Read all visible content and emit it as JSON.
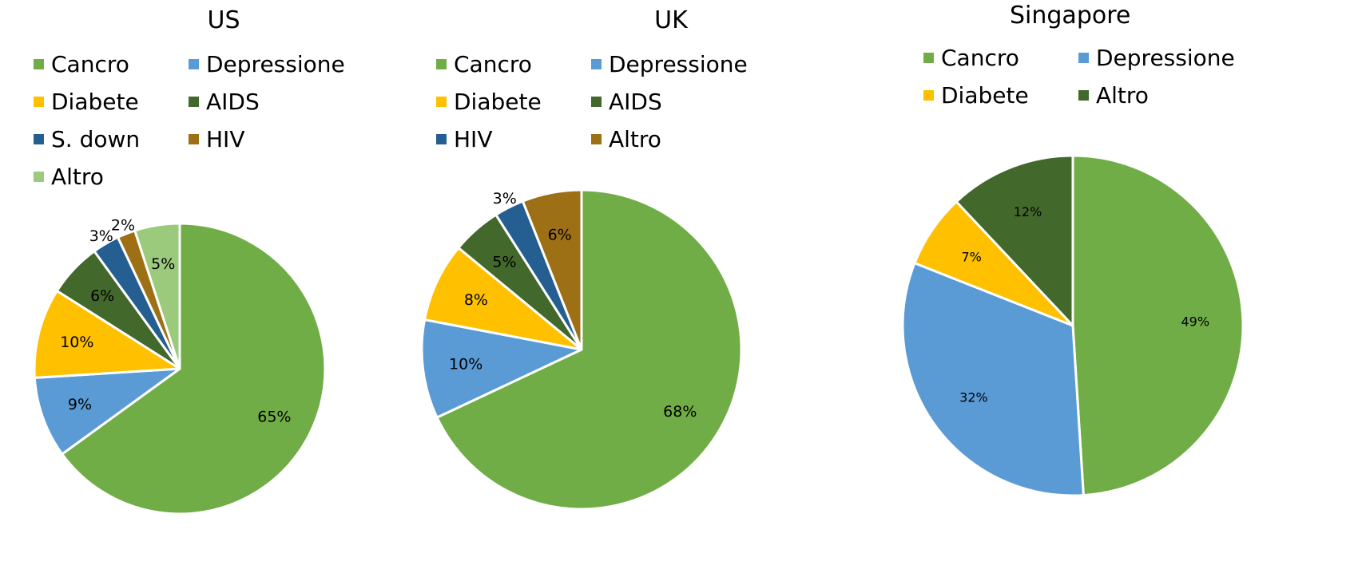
{
  "chart_data": [
    {
      "type": "pie",
      "title": "US",
      "categories": [
        "Cancro",
        "Depressione",
        "Diabete",
        "AIDS",
        "S. down",
        "HIV",
        "Altro"
      ],
      "values": [
        65,
        9,
        10,
        6,
        3,
        2,
        5
      ],
      "labels": [
        "65%",
        "9%",
        "10%",
        "6%",
        "3%",
        "2%",
        "5%"
      ],
      "colors": [
        "#70AD47",
        "#5B9BD5",
        "#FFC000",
        "#43682B",
        "#255E91",
        "#9E7016",
        "#9BCA7D"
      ],
      "legend_position": "top"
    },
    {
      "type": "pie",
      "title": "UK",
      "categories": [
        "Cancro",
        "Depressione",
        "Diabete",
        "AIDS",
        "HIV",
        "Altro"
      ],
      "values": [
        68,
        10,
        8,
        5,
        3,
        6
      ],
      "labels": [
        "68%",
        "10%",
        "8%",
        "5%",
        "3%",
        "6%"
      ],
      "colors": [
        "#70AD47",
        "#5B9BD5",
        "#FFC000",
        "#43682B",
        "#255E91",
        "#9E7016"
      ],
      "legend_position": "top"
    },
    {
      "type": "pie",
      "title": "Singapore",
      "categories": [
        "Cancro",
        "Depressione",
        "Diabete",
        "Altro"
      ],
      "values": [
        49,
        32,
        7,
        12
      ],
      "labels": [
        "49%",
        "32%",
        "7%",
        "12%"
      ],
      "colors": [
        "#70AD47",
        "#5B9BD5",
        "#FFC000",
        "#43682B"
      ],
      "legend_position": "top"
    }
  ]
}
